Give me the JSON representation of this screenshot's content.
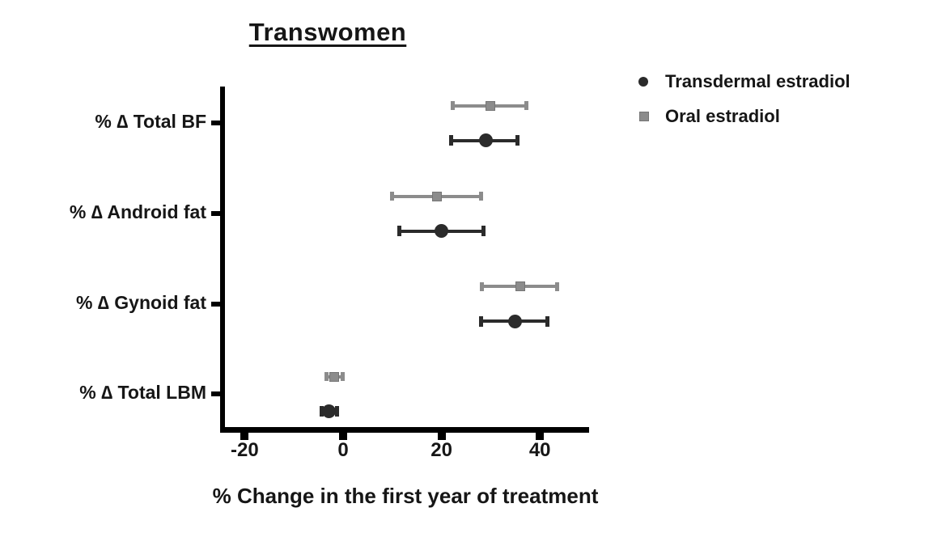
{
  "chart_data": {
    "type": "scatter",
    "subtype": "horizontal-point-estimates-with-error-bars",
    "title": "Transwomen",
    "xlabel": "% Change in the first year of treatment",
    "ylabel": "",
    "categories": [
      "% ∆ Total BF",
      "% ∆ Android fat",
      "% ∆ Gynoid fat",
      "% ∆ Total LBM"
    ],
    "xticks": [
      -20,
      0,
      20,
      40
    ],
    "xlim": [
      -24.8,
      50
    ],
    "grid": "off",
    "legend_position": "top-right",
    "axis_color": "#000000",
    "series": [
      {
        "name": "Transdermal estradiol",
        "marker": "circle",
        "color": "#2b2b2b",
        "points": [
          {
            "category": "% ∆ Total BF",
            "mean": 29.0,
            "lo": 22.0,
            "hi": 35.5
          },
          {
            "category": "% ∆ Android fat",
            "mean": 20.0,
            "lo": 11.5,
            "hi": 28.5
          },
          {
            "category": "% ∆ Gynoid fat",
            "mean": 35.0,
            "lo": 28.0,
            "hi": 41.5
          },
          {
            "category": "% ∆ Total LBM",
            "mean": -2.8,
            "lo": -4.4,
            "hi": -1.3
          }
        ]
      },
      {
        "name": "Oral estradiol",
        "marker": "square",
        "color": "#8c8c8c",
        "points": [
          {
            "category": "% ∆ Total BF",
            "mean": 30.0,
            "lo": 22.3,
            "hi": 37.3
          },
          {
            "category": "% ∆ Android fat",
            "mean": 19.0,
            "lo": 10.0,
            "hi": 28.0
          },
          {
            "category": "% ∆ Gynoid fat",
            "mean": 36.0,
            "lo": 28.2,
            "hi": 43.5
          },
          {
            "category": "% ∆ Total LBM",
            "mean": -1.8,
            "lo": -3.4,
            "hi": -0.1
          }
        ]
      }
    ]
  }
}
